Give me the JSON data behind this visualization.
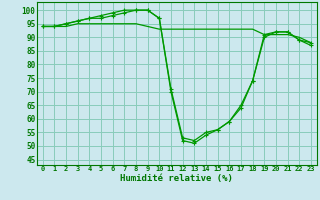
{
  "xlabel": "Humidité relative (%)",
  "background_color": "#cce8ee",
  "grid_color": "#88ccbb",
  "line_color": "#009900",
  "xlim": [
    -0.5,
    23.5
  ],
  "ylim": [
    43,
    103
  ],
  "yticks": [
    45,
    50,
    55,
    60,
    65,
    70,
    75,
    80,
    85,
    90,
    95,
    100
  ],
  "xticks": [
    0,
    1,
    2,
    3,
    4,
    5,
    6,
    7,
    8,
    9,
    10,
    11,
    12,
    13,
    14,
    15,
    16,
    17,
    18,
    19,
    20,
    21,
    22,
    23
  ],
  "series": [
    [
      94,
      94,
      94,
      95,
      95,
      95,
      95,
      95,
      95,
      94,
      93,
      93,
      93,
      93,
      93,
      93,
      93,
      93,
      93,
      91,
      91,
      91,
      90,
      88
    ],
    [
      94,
      94,
      95,
      96,
      97,
      97,
      98,
      99,
      100,
      100,
      97,
      71,
      53,
      52,
      55,
      56,
      59,
      64,
      74,
      90,
      92,
      92,
      89,
      88
    ],
    [
      94,
      94,
      95,
      96,
      97,
      98,
      99,
      100,
      100,
      100,
      97,
      70,
      52,
      51,
      54,
      56,
      59,
      65,
      74,
      91,
      92,
      92,
      89,
      87
    ]
  ]
}
